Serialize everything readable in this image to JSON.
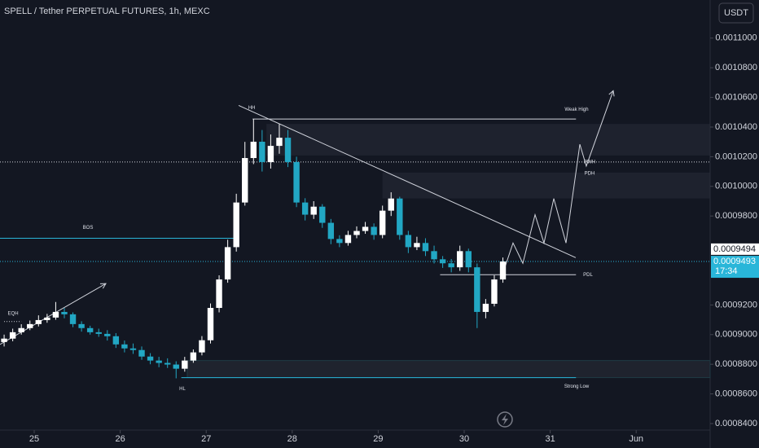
{
  "chart_data": {
    "type": "candlestick",
    "title": "SPELL / Tether PERPETUAL FUTURES, 1h, MEXC",
    "currency": "USDT",
    "up_color": "#ffffff",
    "down_color": "#22a7c4",
    "xlim": [
      24.602,
      32.86
    ],
    "ylim": [
      0.0008356,
      0.0011257
    ],
    "xticks": [
      25,
      26,
      27,
      28,
      29,
      30,
      31,
      {
        "value": 32,
        "label": "Jun"
      }
    ],
    "yticks": [
      {
        "value": 0.0011,
        "label": "0.0011000"
      },
      {
        "value": 0.00108,
        "label": "0.0010800"
      },
      {
        "value": 0.00106,
        "label": "0.0010600"
      },
      {
        "value": 0.00104,
        "label": "0.0010400"
      },
      {
        "value": 0.00102,
        "label": "0.0010200"
      },
      {
        "value": 0.001,
        "label": "0.0010000"
      },
      {
        "value": 0.00098,
        "label": "0.0009800"
      },
      {
        "value": 0.00092,
        "label": "0.0009200"
      },
      {
        "value": 0.0009,
        "label": "0.0009000"
      },
      {
        "value": 0.00088,
        "label": "0.0008800"
      },
      {
        "value": 0.00086,
        "label": "0.0008600"
      },
      {
        "value": 0.00084,
        "label": "0.0008400"
      }
    ],
    "grid": false,
    "x": [
      24.65,
      24.75,
      24.85,
      24.95,
      25.05,
      25.15,
      25.25,
      25.35,
      25.45,
      25.55,
      25.65,
      25.75,
      25.85,
      25.95,
      26.05,
      26.15,
      26.25,
      26.35,
      26.45,
      26.55,
      26.65,
      26.75,
      26.85,
      26.95,
      27.05,
      27.15,
      27.25,
      27.35,
      27.45,
      27.55,
      27.65,
      27.75,
      27.85,
      27.95,
      28.05,
      28.15,
      28.25,
      28.35,
      28.45,
      28.55,
      28.65,
      28.75,
      28.85,
      28.95,
      29.05,
      29.15,
      29.25,
      29.35,
      29.45,
      29.55,
      29.65,
      29.75,
      29.85,
      29.95,
      30.05,
      30.15,
      30.25,
      30.35,
      30.45
    ],
    "open": [
      0.000895,
      0.0008973,
      0.0009016,
      0.0009044,
      0.0009071,
      0.0009098,
      0.0009115,
      0.0009153,
      0.0009137,
      0.0009071,
      0.0009044,
      0.0009016,
      0.0009005,
      0.0008989,
      0.0008934,
      0.0008907,
      0.0008896,
      0.0008852,
      0.0008825,
      0.0008809,
      0.0008798,
      0.000877,
      0.0008825,
      0.000888,
      0.0008962,
      0.000918,
      0.0009372,
      0.000959,
      0.0009891,
      0.0010191,
      0.0010301,
      0.0010164,
      0.0010273,
      0.0010328,
      0.0010164,
      0.0009891,
      0.0009809,
      0.0009863,
      0.0009754,
      0.0009645,
      0.0009618,
      0.0009672,
      0.0009699,
      0.0009727,
      0.0009672,
      0.0009836,
      0.0009918,
      0.0009672,
      0.000959,
      0.0009618,
      0.0009563,
      0.0009508,
      0.0009481,
      0.0009454,
      0.0009563,
      0.0009454,
      0.0009153,
      0.0009208,
      0.0009372
    ],
    "high": [
      0.0009,
      0.000904,
      0.000907,
      0.0009095,
      0.000913,
      0.000914,
      0.000922,
      0.000918,
      0.000915,
      0.000909,
      0.000906,
      0.000904,
      0.000903,
      0.000901,
      0.000896,
      0.000894,
      0.000892,
      0.0008875,
      0.000885,
      0.000884,
      0.000882,
      0.000885,
      0.00089,
      0.000899,
      0.000921,
      0.00094,
      0.000964,
      0.000995,
      0.00103,
      0.0010454,
      0.001038,
      0.001035,
      0.001042,
      0.001038,
      0.00102,
      0.000992,
      0.00099,
      0.000988,
      0.000978,
      0.000967,
      0.00097,
      0.000973,
      0.000976,
      0.000975,
      0.000987,
      0.000996,
      0.000993,
      0.00097,
      0.000966,
      0.000965,
      0.00096,
      0.000953,
      0.000951,
      0.00096,
      0.000958,
      0.000948,
      0.000924,
      0.00094,
      0.000952
    ],
    "low": [
      0.000892,
      0.0008955,
      0.0009,
      0.000903,
      0.0009055,
      0.000908,
      0.00091,
      0.000911,
      0.000905,
      0.000902,
      0.0009,
      0.0008985,
      0.000896,
      0.000891,
      0.000888,
      0.000887,
      0.000883,
      0.00088,
      0.000878,
      0.0008775,
      0.0008705,
      0.000875,
      0.000881,
      0.000886,
      0.000894,
      0.000915,
      0.000935,
      0.000956,
      0.000987,
      0.001015,
      0.00101,
      0.001012,
      0.001022,
      0.001013,
      0.000986,
      0.000977,
      0.000978,
      0.000972,
      0.000961,
      0.000959,
      0.00096,
      0.000965,
      0.000968,
      0.000964,
      0.000965,
      0.00098,
      0.000964,
      0.000955,
      0.000957,
      0.000953,
      0.000948,
      0.000945,
      0.000942,
      0.000943,
      0.000942,
      0.0009044,
      0.000911,
      0.000919,
      0.000935
    ],
    "close": [
      0.0008973,
      0.0009016,
      0.0009044,
      0.0009071,
      0.0009098,
      0.0009115,
      0.0009153,
      0.0009137,
      0.0009071,
      0.0009044,
      0.0009016,
      0.0009005,
      0.0008989,
      0.0008934,
      0.0008907,
      0.0008896,
      0.0008852,
      0.0008825,
      0.0008809,
      0.0008798,
      0.000877,
      0.0008825,
      0.000888,
      0.0008962,
      0.000918,
      0.0009372,
      0.000959,
      0.0009891,
      0.0010191,
      0.0010301,
      0.0010164,
      0.0010273,
      0.0010328,
      0.0010164,
      0.0009891,
      0.0009809,
      0.0009863,
      0.0009754,
      0.0009645,
      0.0009618,
      0.0009672,
      0.0009699,
      0.0009727,
      0.0009672,
      0.0009836,
      0.0009918,
      0.0009672,
      0.000959,
      0.0009618,
      0.0009563,
      0.0009508,
      0.0009481,
      0.0009454,
      0.0009563,
      0.0009454,
      0.0009153,
      0.0009208,
      0.0009372,
      0.0009493
    ],
    "last_price": {
      "value": 0.0009493,
      "label": "0.0009493"
    },
    "countdown": "17:34",
    "marker_price": {
      "value": 0.0009494,
      "label": "0.0009494"
    },
    "zones": [
      {
        "x": [
          27.7,
          32.86
        ],
        "y": [
          0.0010208,
          0.0010421
        ]
      },
      {
        "x": [
          29.05,
          32.86
        ],
        "y": [
          0.0009918,
          0.0010093
        ]
      },
      {
        "x": [
          26.78,
          32.86
        ],
        "y": [
          0.000871,
          0.0008825
        ]
      }
    ],
    "levels": [
      {
        "x": [
          27.54,
          31.3
        ],
        "value": 0.0010454,
        "style": "solid"
      },
      {
        "x": [
          24.602,
          32.86
        ],
        "value": 0.0010164,
        "style": "dotted"
      },
      {
        "x": [
          24.602,
          27.37
        ],
        "value": 0.000965,
        "style": "solid"
      },
      {
        "x": [
          24.65,
          24.85
        ],
        "value": 0.0009088,
        "style": "dotted"
      },
      {
        "x": [
          29.72,
          31.3
        ],
        "value": 0.0009404,
        "style": "solid"
      },
      {
        "x": [
          26.71,
          31.3
        ],
        "value": 0.000871,
        "style": "solid"
      }
    ],
    "trendlines": [
      {
        "x": [
          27.377,
          31.297
        ],
        "values": [
          0.0010546,
          0.0009519
        ],
        "arrow": false
      },
      {
        "x": [
          24.602,
          25.833
        ],
        "values": [
          0.0008934,
          0.0009344
        ],
        "arrow": true
      },
      {
        "x": [
          30.473,
          30.568,
          30.682,
          30.824,
          30.928,
          31.042,
          31.184,
          31.345,
          31.42,
          31.733
        ],
        "values": [
          0.0009454,
          0.0009618,
          0.0009481,
          0.0009809,
          0.0009618,
          0.0009918,
          0.0009618,
          0.0010284,
          0.0010137,
          0.0010645
        ],
        "arrow": true
      }
    ],
    "annotations": [
      {
        "text": "HH",
        "x": 27.53,
        "value": 0.001053
      },
      {
        "text": "Weak High",
        "x": 31.307,
        "value": 0.0010519
      },
      {
        "text": "PWH",
        "x": 31.458,
        "value": 0.0010164
      },
      {
        "text": "PDH",
        "x": 31.458,
        "value": 0.0010087
      },
      {
        "text": "BOS",
        "x": 25.625,
        "value": 0.0009721
      },
      {
        "text": "EQH",
        "x": 24.754,
        "value": 0.0009142
      },
      {
        "text": "PDL",
        "x": 31.439,
        "value": 0.0009404
      },
      {
        "text": "HL",
        "x": 26.723,
        "value": 0.0008634
      },
      {
        "text": "Strong Low",
        "x": 31.307,
        "value": 0.000865
      }
    ]
  }
}
